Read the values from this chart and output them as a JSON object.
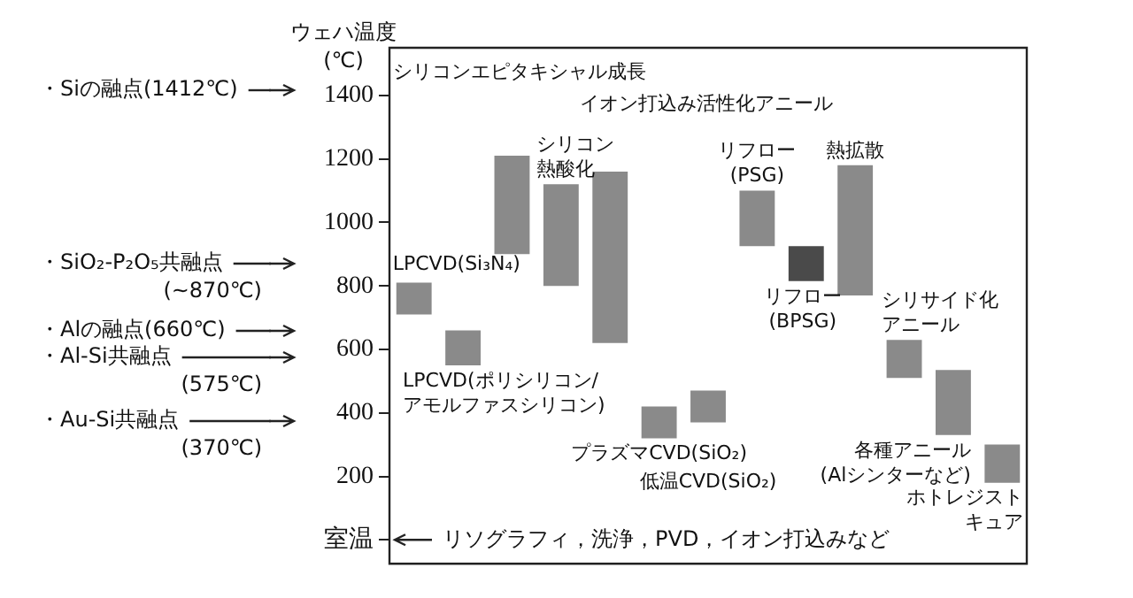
{
  "chart_data": {
    "type": "bar",
    "ylabel": "ウェハ温度\n(℃)",
    "categories": [
      null,
      null,
      null,
      null,
      null,
      null,
      null,
      null,
      null,
      null,
      null,
      null,
      null
    ],
    "values": [
      100,
      110,
      310,
      320,
      540,
      100,
      100,
      175,
      110,
      410,
      120,
      205,
      120
    ],
    "base": [
      710,
      550,
      900,
      800,
      620,
      320,
      370,
      925,
      815,
      770,
      510,
      330,
      180
    ],
    "colors": [
      "#8a8a8a",
      "#8a8a8a",
      "#8a8a8a",
      "#8a8a8a",
      "#8a8a8a",
      "#8a8a8a",
      "#8a8a8a",
      "#8a8a8a",
      "#4a4a4a",
      "#8a8a8a",
      "#8a8a8a",
      "#8a8a8a",
      "#8a8a8a"
    ],
    "ylim": [
      -75,
      1550
    ],
    "yticks": [
      {
        "value": 0,
        "label": "室温"
      },
      200,
      400,
      600,
      800,
      1000,
      1200,
      1400
    ],
    "tick_labels": "y",
    "grid": false,
    "legend": false,
    "annotations": [
      "LPCVD(Si₃N₄)",
      "LPCVD(ポリシリコン/\nアモルファスシリコン)",
      "シリコンエピタキシャル成長",
      "シリコン熱酸化",
      "イオン打込み活性化アニール",
      "プラズマCVD(SiO₂)",
      "低温CVD(SiO₂)",
      "リフロー\n(PSG)",
      "リフロー\n(BPSG)",
      "熱拡散",
      "シリサイド化アニール",
      "各種アニール\n(Alシンターなど)",
      "ホトレジストキュア",
      "・Siの融点(1412℃)",
      "・SiO₂-P₂O₅共融点\n(~870℃)",
      "・Alの融点(660℃)",
      "・Al-Si共融点\n(575℃)",
      "・Au-Si共融点\n(370℃)",
      "リソグラフィ，洗浄，PVD，イオン打込みなど"
    ]
  }
}
